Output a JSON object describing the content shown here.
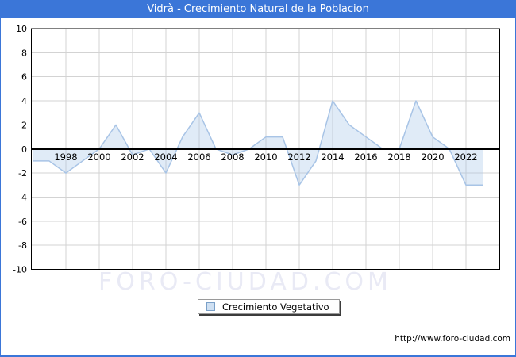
{
  "header": {
    "title": "Vidrà - Crecimiento Natural de la Poblacion"
  },
  "chart_data": {
    "type": "area",
    "title": "Vidrà - Crecimiento Natural de la Poblacion",
    "series_name": "Crecimiento Vegetativo",
    "x": [
      1996,
      1997,
      1998,
      1999,
      2000,
      2001,
      2002,
      2003,
      2004,
      2005,
      2006,
      2007,
      2008,
      2009,
      2010,
      2011,
      2012,
      2013,
      2014,
      2015,
      2016,
      2017,
      2018,
      2019,
      2020,
      2021,
      2022,
      2023
    ],
    "values": [
      -1,
      -1,
      -2,
      -1,
      0,
      2,
      -0.5,
      0,
      -2,
      1,
      3,
      0,
      -0.5,
      0,
      1,
      1,
      -3,
      -1,
      4,
      2,
      1,
      0,
      0,
      4,
      1,
      0,
      -3,
      -3
    ],
    "ylim": [
      -10,
      10
    ],
    "yticks": [
      10,
      8,
      6,
      4,
      2,
      0,
      -2,
      -4,
      -6,
      -8,
      -10
    ],
    "xtick_labels": [
      "1998",
      "2000",
      "2002",
      "2004",
      "2006",
      "2008",
      "2010",
      "2012",
      "2014",
      "2016",
      "2018",
      "2020",
      "2022"
    ],
    "grid": true,
    "xlabel": "",
    "ylabel": "",
    "legend_position": "bottom-center",
    "colors": {
      "titlebar": "#3b76d8",
      "line": "#a8c4e6",
      "fill": "rgba(166,198,232,0.35)",
      "grid": "#d3d3d3",
      "zero_axis": "#000000",
      "plot_border": "#000000",
      "tick_text": "#000000"
    }
  },
  "legend": {
    "label": "Crecimiento Vegetativo",
    "swatch_color": "#cfe0f2"
  },
  "watermark": {
    "text": "FORO-CIUDAD.COM"
  },
  "footer": {
    "url": "http://www.foro-ciudad.com"
  }
}
